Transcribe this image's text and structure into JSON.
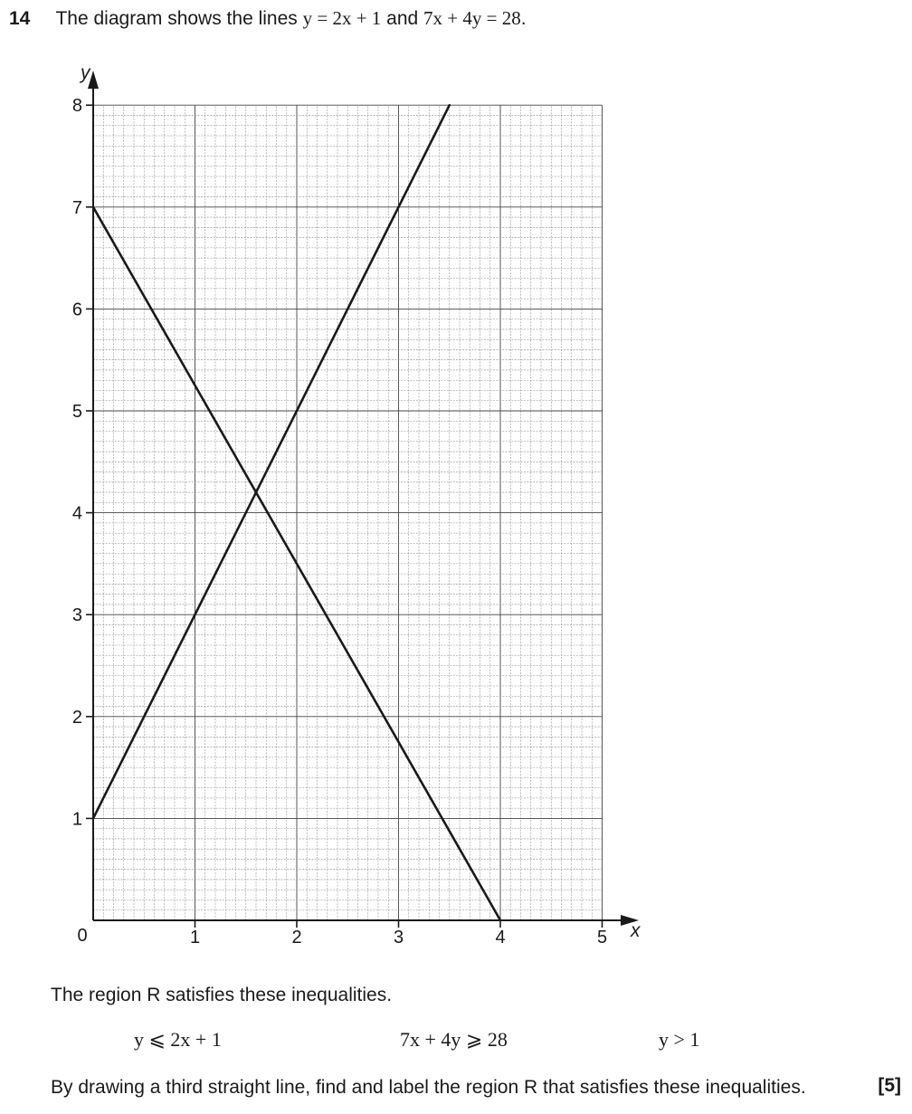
{
  "question": {
    "number": "14",
    "intro": "The diagram shows the lines",
    "line1": "y = 2x + 1",
    "and": "and",
    "line2": "7x + 4y = 28",
    "end": "."
  },
  "chart_data": {
    "type": "line",
    "xlabel": "x",
    "ylabel": "y",
    "xlim": [
      0,
      5
    ],
    "ylim": [
      0,
      8
    ],
    "origin_label": "0",
    "x_ticks": [
      "1",
      "2",
      "3",
      "4",
      "5"
    ],
    "y_ticks": [
      "1",
      "2",
      "3",
      "4",
      "5",
      "6",
      "7",
      "8"
    ],
    "grid": "2 mm squares, 10 per unit",
    "series": [
      {
        "x": [
          0,
          3.5
        ],
        "y": [
          1,
          8
        ]
      },
      {
        "x": [
          0,
          4
        ],
        "y": [
          7,
          0
        ]
      }
    ]
  },
  "text": {
    "region_intro": "The region R satisfies these inequalities.",
    "inequalities": [
      "y ⩽ 2x + 1",
      "7x + 4y ⩾ 28",
      "y > 1"
    ],
    "instruction": "By drawing a third straight line, find and label the region R that satisfies these inequalities.",
    "marks": "[5]"
  }
}
